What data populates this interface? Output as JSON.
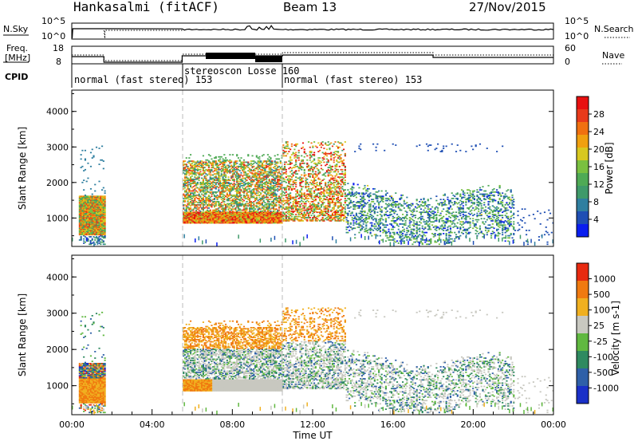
{
  "header": {
    "station": "Hankasalmi (fitACF)",
    "beam": "Beam 13",
    "date": "27/Nov/2015"
  },
  "noise_panel": {
    "left_label": "N.Sky",
    "right_label": "N.Search",
    "left_ticks": [
      "10^5",
      "10^0"
    ],
    "right_ticks": [
      "10^5",
      "10^0"
    ]
  },
  "freq_panel": {
    "left_label_line1": "Freq.",
    "left_label_line2": "[MHz]",
    "right_label": "Nave",
    "left_ticks": [
      "18",
      "8"
    ],
    "right_ticks": [
      "60",
      "0"
    ]
  },
  "cpid": {
    "label": "CPID",
    "segments": [
      {
        "text": "normal (fast stereo) 153",
        "start_h": 0,
        "end_h": 5.5
      },
      {
        "text": "stereoscon Losse 160",
        "start_h": 5.5,
        "end_h": 10.5
      },
      {
        "text": "normal (fast stereo) 153",
        "start_h": 10.5,
        "end_h": 24
      }
    ]
  },
  "chart_data": [
    {
      "type": "heatmap",
      "quantity": "Power",
      "ylabel": "Slant Range [km]",
      "yticks": [
        "1000",
        "2000",
        "3000",
        "4000"
      ],
      "ylim": [
        200,
        4600
      ],
      "colorbar": {
        "label": "Power [dB]",
        "ticks": [
          "4",
          "8",
          "12",
          "16",
          "20",
          "24",
          "28"
        ],
        "colors": [
          "#0a1ef0",
          "#1f4fb4",
          "#2f7fa0",
          "#3f9a6a",
          "#4faa55",
          "#7ac040",
          "#d8c820",
          "#f0a010",
          "#f07010",
          "#e83a1a",
          "#e81010"
        ]
      },
      "regions": [
        {
          "t": [
            0.3,
            1.6
          ],
          "r": [
            500,
            1600
          ],
          "level": "mixed-high"
        },
        {
          "t": [
            5.5,
            10.5
          ],
          "r": [
            800,
            2600
          ],
          "level": "high"
        },
        {
          "t": [
            10.5,
            13.5
          ],
          "r": [
            900,
            3100
          ],
          "level": "high"
        },
        {
          "t": [
            13.0,
            21.5
          ],
          "r": [
            1000,
            2000
          ],
          "level": "low"
        }
      ]
    },
    {
      "type": "heatmap",
      "quantity": "Velocity",
      "ylabel": "Slant Range [km]",
      "yticks": [
        "1000",
        "2000",
        "3000",
        "4000"
      ],
      "ylim": [
        200,
        4600
      ],
      "xlabel": "Time UT",
      "xticks": [
        "00:00",
        "04:00",
        "08:00",
        "12:00",
        "16:00",
        "20:00",
        "00:00"
      ],
      "xlim": [
        0,
        24
      ],
      "colorbar": {
        "label": "Velocity [m s-1]",
        "ticks": [
          "1000",
          "500",
          "100",
          "25",
          "-25",
          "-100",
          "-500",
          "-1000"
        ],
        "colors": [
          "#1a30c8",
          "#2f60a8",
          "#2f8a60",
          "#60b840",
          "#c8c8c0",
          "#f0b020",
          "#f07a10",
          "#e82a10"
        ]
      }
    }
  ]
}
